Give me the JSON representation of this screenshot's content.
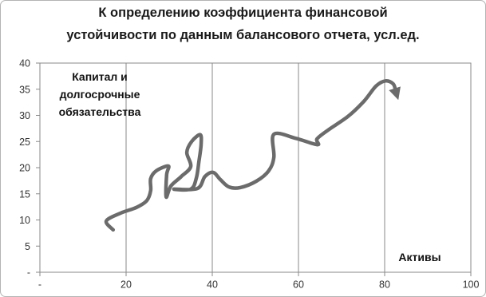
{
  "chart_data": {
    "type": "line",
    "title": [
      "К определению коэффициента финансовой",
      "устойчивости по данным балансового отчета, усл.ед."
    ],
    "xlabel": "Активы",
    "ylabel": "Капитал и долгосрочные обязательства",
    "xlim": [
      0,
      100
    ],
    "ylim": [
      0,
      40
    ],
    "grid": "vertical",
    "x_ticks": [
      {
        "value": 0,
        "label": "-"
      },
      {
        "value": 20,
        "label": "20"
      },
      {
        "value": 40,
        "label": "40"
      },
      {
        "value": 60,
        "label": "60"
      },
      {
        "value": 80,
        "label": "80"
      },
      {
        "value": 100,
        "label": "100"
      }
    ],
    "y_ticks": [
      {
        "value": 0,
        "label": "-"
      },
      {
        "value": 5,
        "label": "5"
      },
      {
        "value": 10,
        "label": "10"
      },
      {
        "value": 15,
        "label": "15"
      },
      {
        "value": 20,
        "label": "20"
      },
      {
        "value": 25,
        "label": "25"
      },
      {
        "value": 30,
        "label": "30"
      },
      {
        "value": 35,
        "label": "35"
      },
      {
        "value": 40,
        "label": "40"
      }
    ],
    "series": [
      {
        "x": [
          17.0,
          15.4,
          18.7,
          22.4,
          24.8,
          25.7,
          25.7,
          27.0,
          29.8,
          29.4,
          29.3,
          30.4,
          32.8,
          35.0,
          34.1,
          35.2,
          37.2,
          37.4,
          36.9,
          36.3,
          35.0,
          31.1,
          36.5,
          38.3,
          40.2,
          41.9,
          43.9,
          46.5,
          50.2,
          53.1,
          54.3,
          54.3,
          59.4,
          64.4,
          64.3,
          66.9,
          71.5,
          75.2,
          78.0,
          80.2,
          82.0,
          82.6
        ],
        "y": [
          8.1,
          9.8,
          11.3,
          12.4,
          13.7,
          15.6,
          17.9,
          19.4,
          20.3,
          18.6,
          14.4,
          16.5,
          18.3,
          20.2,
          22.9,
          25.0,
          26.3,
          24.4,
          21.2,
          18.0,
          15.9,
          15.9,
          16.0,
          18.3,
          19.1,
          17.7,
          16.3,
          16.2,
          17.4,
          19.4,
          22.0,
          26.4,
          25.6,
          24.4,
          25.5,
          27.2,
          29.8,
          32.7,
          35.6,
          36.6,
          36.0,
          34.5
        ],
        "end_marker": "arrow"
      }
    ],
    "colors": {
      "line": "#6b6b6b",
      "grid": "#8a8a8a",
      "text": "#1a1a1a"
    }
  }
}
